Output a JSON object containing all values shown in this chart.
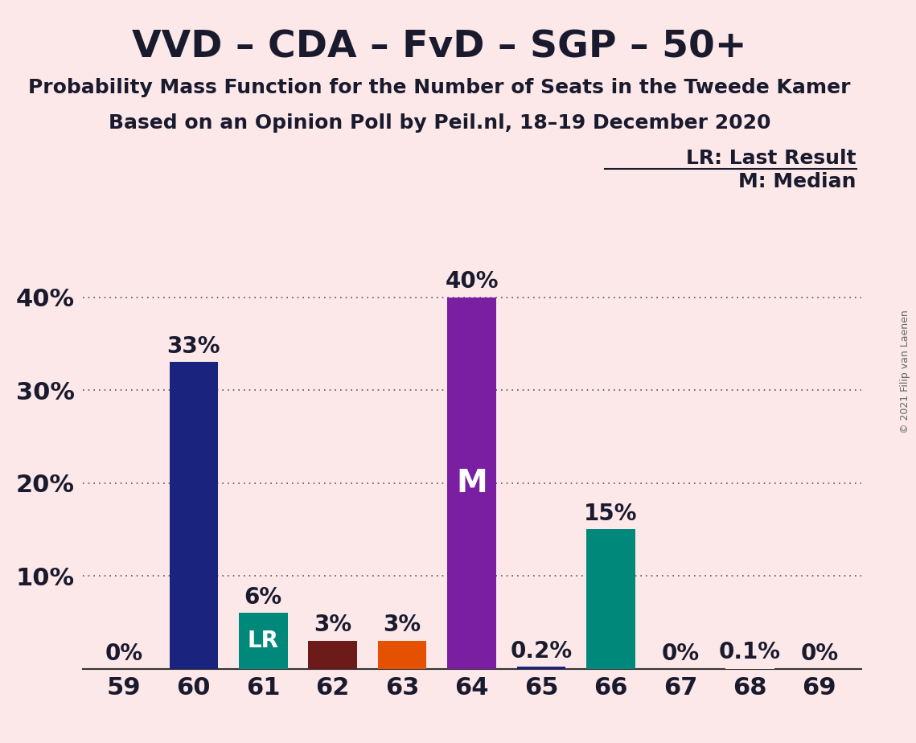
{
  "title": "VVD – CDA – FvD – SGP – 50+",
  "subtitle1": "Probability Mass Function for the Number of Seats in the Tweede Kamer",
  "subtitle2": "Based on an Opinion Poll by Peil.nl, 18–19 December 2020",
  "copyright": "© 2021 Filip van Laenen",
  "legend_lr": "LR: Last Result",
  "legend_m": "M: Median",
  "background_color": "#fce8e8",
  "categories": [
    59,
    60,
    61,
    62,
    63,
    64,
    65,
    66,
    67,
    68,
    69
  ],
  "values": [
    0.0,
    33.0,
    6.0,
    3.0,
    3.0,
    40.0,
    0.2,
    15.0,
    0.0,
    0.1,
    0.0
  ],
  "bar_colors": [
    "#fce8e8",
    "#1a237e",
    "#00897b",
    "#6d1a1a",
    "#e65100",
    "#7b1fa2",
    "#1a237e",
    "#00897b",
    "#fce8e8",
    "#fce8e8",
    "#fce8e8"
  ],
  "bar_labels": [
    "0%",
    "33%",
    "6%",
    "3%",
    "3%",
    "40%",
    "0.2%",
    "15%",
    "0%",
    "0.1%",
    "0%"
  ],
  "lr_bar_index": 2,
  "median_bar_index": 5,
  "ylim": [
    0,
    44
  ],
  "yticks": [
    10,
    20,
    30,
    40
  ],
  "ytick_labels": [
    "10%",
    "20%",
    "30%",
    "40%"
  ],
  "title_fontsize": 34,
  "subtitle_fontsize": 18,
  "axis_fontsize": 22,
  "bar_label_fontsize": 20,
  "legend_fontsize": 18,
  "title_color": "#1a1a2e",
  "text_color": "#1a1a2e"
}
